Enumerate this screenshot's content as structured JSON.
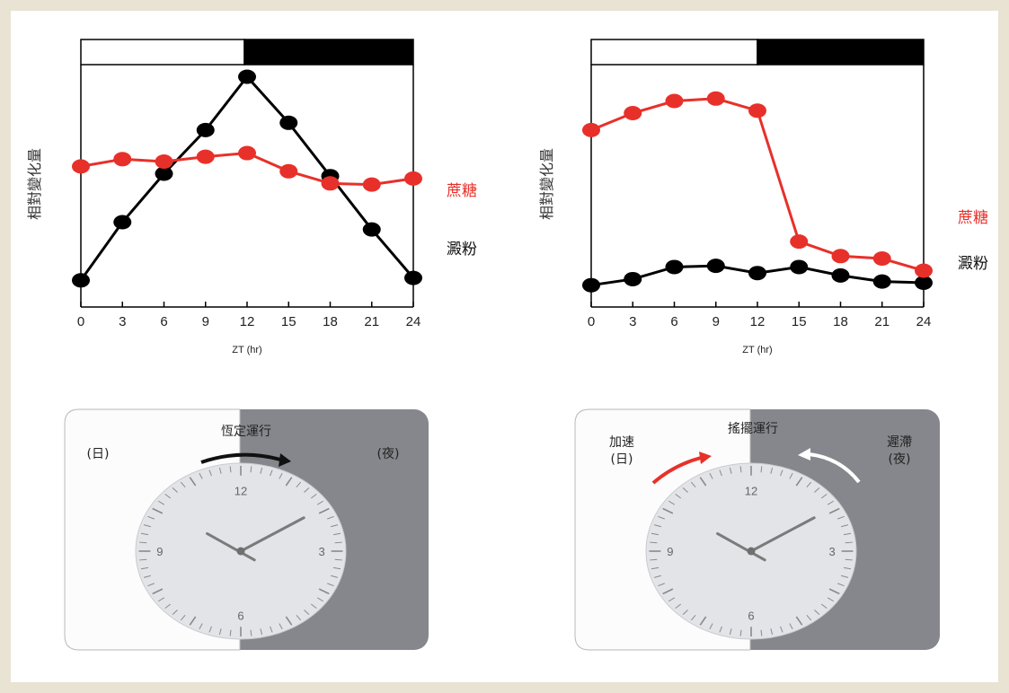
{
  "chart_data": [
    {
      "type": "line",
      "ylabel": "相對變化量",
      "xlabel": "ZT (hr)",
      "x": [
        0,
        3,
        6,
        9,
        12,
        15,
        18,
        21,
        24
      ],
      "xlim": [
        0,
        24
      ],
      "ylim": [
        0,
        10
      ],
      "light_dark_bar": {
        "light": [
          0,
          12
        ],
        "dark": [
          12,
          24
        ]
      },
      "series": [
        {
          "name": "蔗糖",
          "color": "#e8302a",
          "values": [
            5.8,
            6.1,
            6.0,
            6.2,
            6.35,
            5.6,
            5.1,
            5.05,
            5.3
          ]
        },
        {
          "name": "澱粉",
          "color": "#000000",
          "values": [
            1.1,
            3.5,
            5.5,
            7.3,
            9.5,
            7.6,
            5.4,
            3.2,
            1.2
          ]
        }
      ]
    },
    {
      "type": "line",
      "ylabel": "相對變化量",
      "xlabel": "ZT (hr)",
      "x": [
        0,
        3,
        6,
        9,
        12,
        15,
        18,
        21,
        24
      ],
      "xlim": [
        0,
        24
      ],
      "ylim": [
        0,
        10
      ],
      "light_dark_bar": {
        "light": [
          0,
          12
        ],
        "dark": [
          12,
          24
        ]
      },
      "series": [
        {
          "name": "蔗糖",
          "color": "#e8302a",
          "values": [
            7.3,
            8.0,
            8.5,
            8.6,
            8.1,
            2.7,
            2.1,
            2.0,
            1.5
          ]
        },
        {
          "name": "澱粉",
          "color": "#000000",
          "values": [
            0.9,
            1.15,
            1.65,
            1.7,
            1.4,
            1.65,
            1.3,
            1.05,
            1.0
          ]
        }
      ]
    }
  ],
  "clocks": [
    {
      "title": "恆定運行",
      "day_label": "(日)",
      "night_label": "(夜)",
      "arrow_color": "#111111",
      "numbers": [
        "12",
        "3",
        "6",
        "9"
      ]
    },
    {
      "title": "搖擺運行",
      "day_label_1": "加速",
      "day_label_2": "(日)",
      "night_label_1": "遲滯",
      "night_label_2": "(夜)",
      "accel_arrow_color": "#e8302a",
      "delay_arrow_color": "#ffffff",
      "numbers": [
        "12",
        "3",
        "6",
        "9"
      ]
    }
  ]
}
